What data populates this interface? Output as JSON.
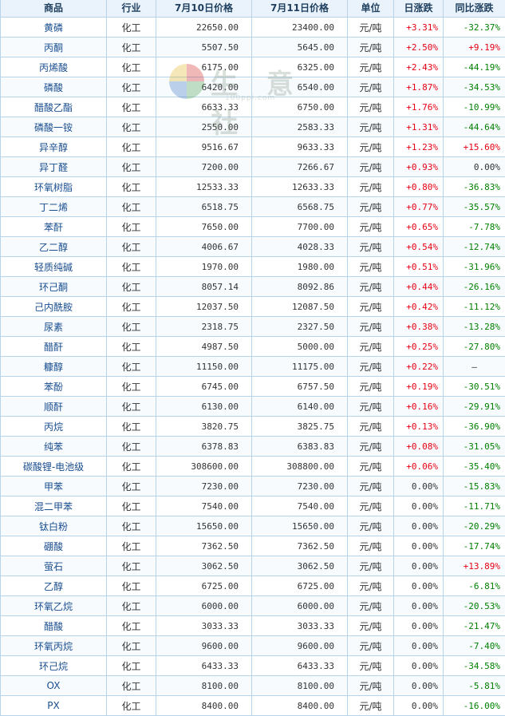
{
  "headers": [
    "商品",
    "行业",
    "7月10日价格",
    "7月11日价格",
    "单位",
    "日涨跌",
    "同比涨跌"
  ],
  "watermark": {
    "text": "生 意 社",
    "url": "100ppi.com"
  },
  "rows": [
    {
      "name": "黄磷",
      "industry": "化工",
      "p1": "22650.00",
      "p2": "23400.00",
      "unit": "元/吨",
      "d": "+3.31%",
      "y": "-32.37%"
    },
    {
      "name": "丙酮",
      "industry": "化工",
      "p1": "5507.50",
      "p2": "5645.00",
      "unit": "元/吨",
      "d": "+2.50%",
      "y": "+9.19%"
    },
    {
      "name": "丙烯酸",
      "industry": "化工",
      "p1": "6175.00",
      "p2": "6325.00",
      "unit": "元/吨",
      "d": "+2.43%",
      "y": "-44.19%"
    },
    {
      "name": "磷酸",
      "industry": "化工",
      "p1": "6420.00",
      "p2": "6540.00",
      "unit": "元/吨",
      "d": "+1.87%",
      "y": "-34.53%"
    },
    {
      "name": "醋酸乙酯",
      "industry": "化工",
      "p1": "6633.33",
      "p2": "6750.00",
      "unit": "元/吨",
      "d": "+1.76%",
      "y": "-10.99%"
    },
    {
      "name": "磷酸一铵",
      "industry": "化工",
      "p1": "2550.00",
      "p2": "2583.33",
      "unit": "元/吨",
      "d": "+1.31%",
      "y": "-44.64%"
    },
    {
      "name": "异辛醇",
      "industry": "化工",
      "p1": "9516.67",
      "p2": "9633.33",
      "unit": "元/吨",
      "d": "+1.23%",
      "y": "+15.60%"
    },
    {
      "name": "异丁醛",
      "industry": "化工",
      "p1": "7200.00",
      "p2": "7266.67",
      "unit": "元/吨",
      "d": "+0.93%",
      "y": "0.00%"
    },
    {
      "name": "环氧树脂",
      "industry": "化工",
      "p1": "12533.33",
      "p2": "12633.33",
      "unit": "元/吨",
      "d": "+0.80%",
      "y": "-36.83%"
    },
    {
      "name": "丁二烯",
      "industry": "化工",
      "p1": "6518.75",
      "p2": "6568.75",
      "unit": "元/吨",
      "d": "+0.77%",
      "y": "-35.57%"
    },
    {
      "name": "苯酐",
      "industry": "化工",
      "p1": "7650.00",
      "p2": "7700.00",
      "unit": "元/吨",
      "d": "+0.65%",
      "y": "-7.78%"
    },
    {
      "name": "乙二醇",
      "industry": "化工",
      "p1": "4006.67",
      "p2": "4028.33",
      "unit": "元/吨",
      "d": "+0.54%",
      "y": "-12.74%"
    },
    {
      "name": "轻质纯碱",
      "industry": "化工",
      "p1": "1970.00",
      "p2": "1980.00",
      "unit": "元/吨",
      "d": "+0.51%",
      "y": "-31.96%"
    },
    {
      "name": "环己酮",
      "industry": "化工",
      "p1": "8057.14",
      "p2": "8092.86",
      "unit": "元/吨",
      "d": "+0.44%",
      "y": "-26.16%"
    },
    {
      "name": "己内酰胺",
      "industry": "化工",
      "p1": "12037.50",
      "p2": "12087.50",
      "unit": "元/吨",
      "d": "+0.42%",
      "y": "-11.12%"
    },
    {
      "name": "尿素",
      "industry": "化工",
      "p1": "2318.75",
      "p2": "2327.50",
      "unit": "元/吨",
      "d": "+0.38%",
      "y": "-13.28%"
    },
    {
      "name": "醋酐",
      "industry": "化工",
      "p1": "4987.50",
      "p2": "5000.00",
      "unit": "元/吨",
      "d": "+0.25%",
      "y": "-27.80%"
    },
    {
      "name": "糠醇",
      "industry": "化工",
      "p1": "11150.00",
      "p2": "11175.00",
      "unit": "元/吨",
      "d": "+0.22%",
      "y": "—"
    },
    {
      "name": "苯酚",
      "industry": "化工",
      "p1": "6745.00",
      "p2": "6757.50",
      "unit": "元/吨",
      "d": "+0.19%",
      "y": "-30.51%"
    },
    {
      "name": "顺酐",
      "industry": "化工",
      "p1": "6130.00",
      "p2": "6140.00",
      "unit": "元/吨",
      "d": "+0.16%",
      "y": "-29.91%"
    },
    {
      "name": "丙烷",
      "industry": "化工",
      "p1": "3820.75",
      "p2": "3825.75",
      "unit": "元/吨",
      "d": "+0.13%",
      "y": "-36.90%"
    },
    {
      "name": "纯苯",
      "industry": "化工",
      "p1": "6378.83",
      "p2": "6383.83",
      "unit": "元/吨",
      "d": "+0.08%",
      "y": "-31.05%"
    },
    {
      "name": "碳酸锂-电池级",
      "industry": "化工",
      "p1": "308600.00",
      "p2": "308800.00",
      "unit": "元/吨",
      "d": "+0.06%",
      "y": "-35.40%"
    },
    {
      "name": "甲苯",
      "industry": "化工",
      "p1": "7230.00",
      "p2": "7230.00",
      "unit": "元/吨",
      "d": "0.00%",
      "y": "-15.83%"
    },
    {
      "name": "混二甲苯",
      "industry": "化工",
      "p1": "7540.00",
      "p2": "7540.00",
      "unit": "元/吨",
      "d": "0.00%",
      "y": "-11.71%"
    },
    {
      "name": "钛白粉",
      "industry": "化工",
      "p1": "15650.00",
      "p2": "15650.00",
      "unit": "元/吨",
      "d": "0.00%",
      "y": "-20.29%"
    },
    {
      "name": "硼酸",
      "industry": "化工",
      "p1": "7362.50",
      "p2": "7362.50",
      "unit": "元/吨",
      "d": "0.00%",
      "y": "-17.74%"
    },
    {
      "name": "萤石",
      "industry": "化工",
      "p1": "3062.50",
      "p2": "3062.50",
      "unit": "元/吨",
      "d": "0.00%",
      "y": "+13.89%"
    },
    {
      "name": "乙醇",
      "industry": "化工",
      "p1": "6725.00",
      "p2": "6725.00",
      "unit": "元/吨",
      "d": "0.00%",
      "y": "-6.81%"
    },
    {
      "name": "环氧乙烷",
      "industry": "化工",
      "p1": "6000.00",
      "p2": "6000.00",
      "unit": "元/吨",
      "d": "0.00%",
      "y": "-20.53%"
    },
    {
      "name": "醋酸",
      "industry": "化工",
      "p1": "3033.33",
      "p2": "3033.33",
      "unit": "元/吨",
      "d": "0.00%",
      "y": "-21.47%"
    },
    {
      "name": "环氧丙烷",
      "industry": "化工",
      "p1": "9600.00",
      "p2": "9600.00",
      "unit": "元/吨",
      "d": "0.00%",
      "y": "-7.40%"
    },
    {
      "name": "环己烷",
      "industry": "化工",
      "p1": "6433.33",
      "p2": "6433.33",
      "unit": "元/吨",
      "d": "0.00%",
      "y": "-34.58%"
    },
    {
      "name": "OX",
      "industry": "化工",
      "p1": "8100.00",
      "p2": "8100.00",
      "unit": "元/吨",
      "d": "0.00%",
      "y": "-5.81%"
    },
    {
      "name": "PX",
      "industry": "化工",
      "p1": "8400.00",
      "p2": "8400.00",
      "unit": "元/吨",
      "d": "0.00%",
      "y": "-16.00%"
    }
  ],
  "colors": {
    "up": "#e60012",
    "down": "#008000",
    "flat": "#333333",
    "border": "#b8d4ea",
    "header_bg": "#eaf3fb",
    "link": "#1a4e8f"
  }
}
